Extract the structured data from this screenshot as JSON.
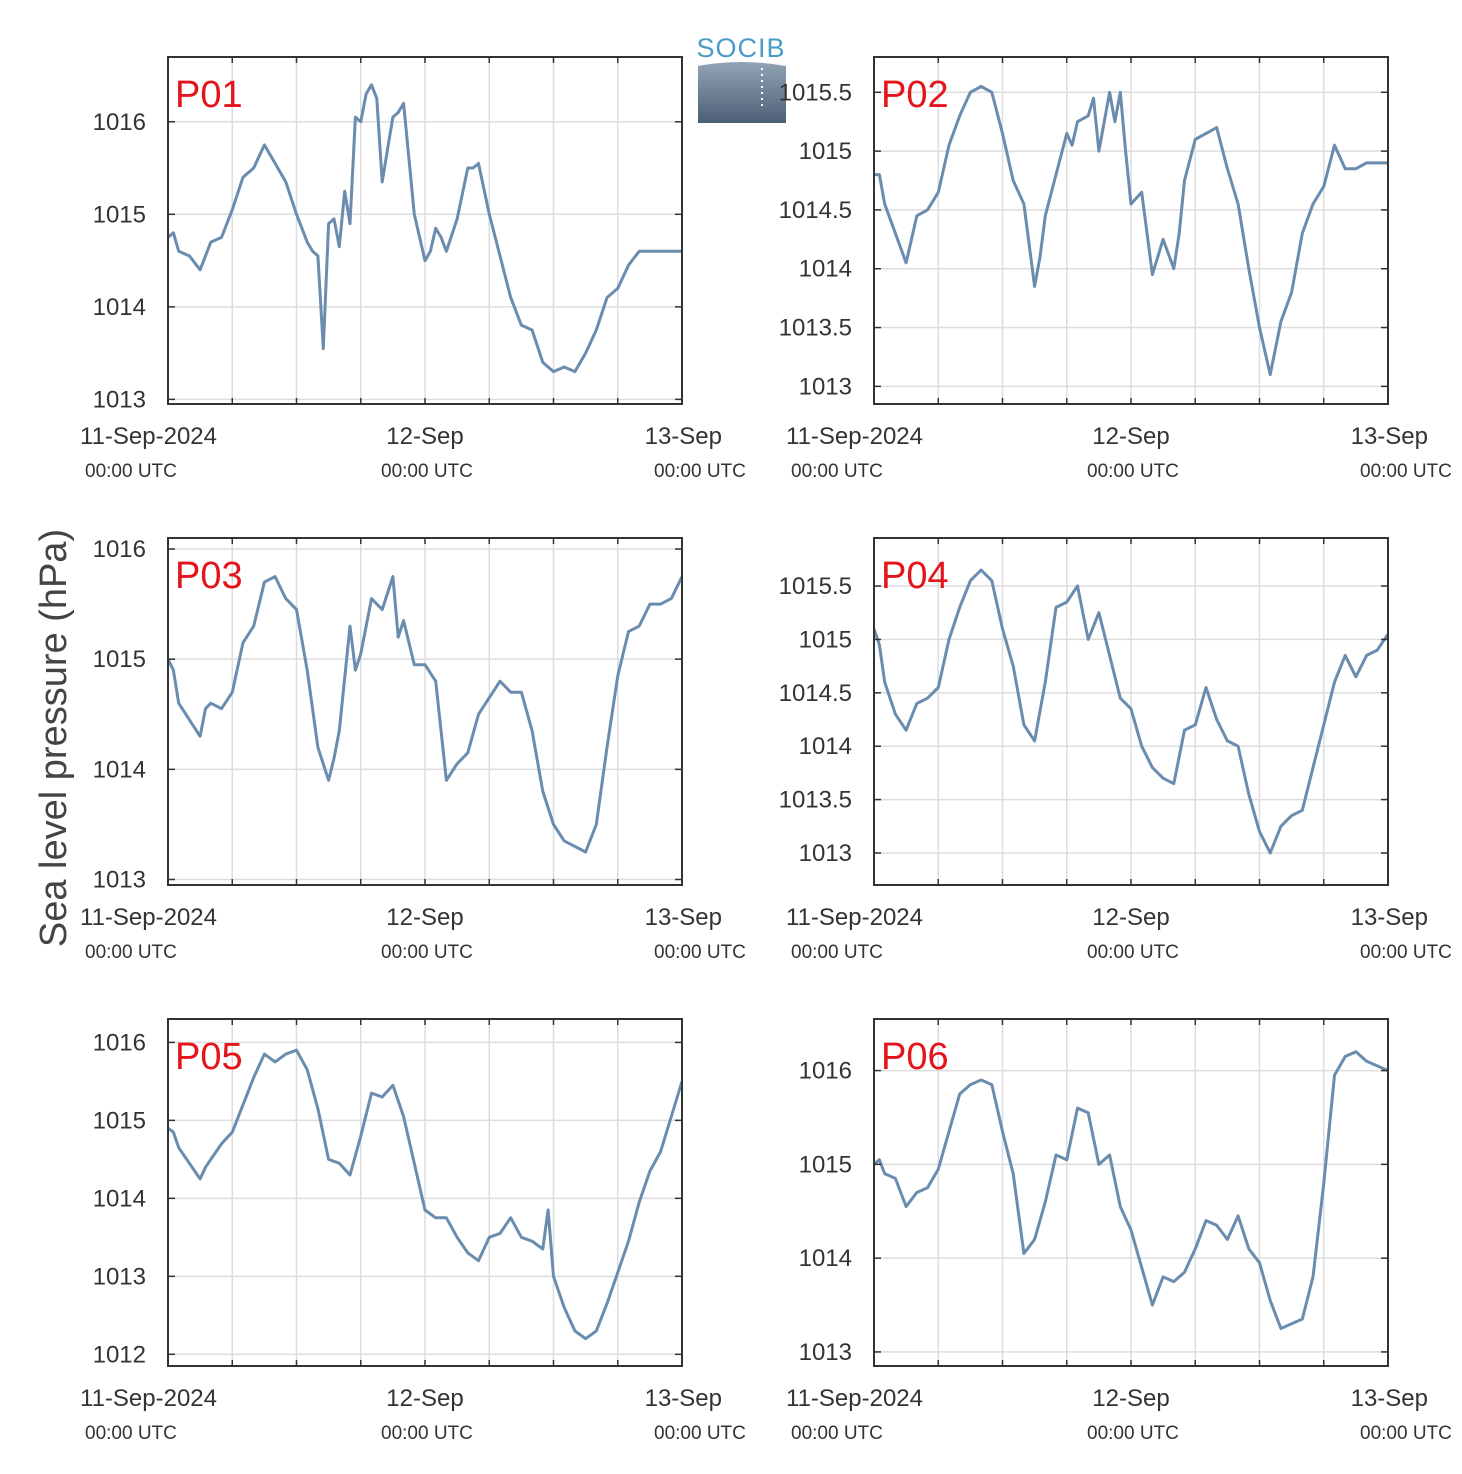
{
  "logo": {
    "text": "SOCIB"
  },
  "ylabel": "Sea level pressure (hPa)",
  "x_ticks": [
    {
      "main": "11-Sep-2024",
      "sub": "00:00 UTC",
      "hour": 0
    },
    {
      "main": "12-Sep",
      "sub": "00:00 UTC",
      "hour": 24
    },
    {
      "main": "13-Sep",
      "sub": "00:00 UTC",
      "hour": 48
    }
  ],
  "colors": {
    "line": "#6a8cae",
    "grid": "#dddddd",
    "axis": "#333333",
    "label": "#e3141b"
  },
  "chart_data": [
    {
      "type": "line",
      "title": "P01",
      "xlim": [
        0,
        48
      ],
      "ylim": [
        1012.95,
        1016.7
      ],
      "yticks": [
        1013,
        1014,
        1015,
        1016
      ],
      "ytick_labels": [
        "1013",
        "1014",
        "1015",
        "1016"
      ],
      "x": [
        0,
        0.5,
        1,
        2,
        3,
        3.5,
        4,
        5,
        6,
        7,
        8,
        9,
        10,
        11,
        12,
        13,
        13.5,
        14,
        14.5,
        15,
        15.5,
        16,
        16.5,
        17,
        17.5,
        18,
        18.5,
        19,
        19.5,
        20,
        20.5,
        21,
        21.5,
        22,
        23,
        24,
        24.5,
        25,
        25.5,
        26,
        27,
        28,
        28.5,
        29,
        30,
        31,
        32,
        33,
        34,
        35,
        36,
        37,
        38,
        39,
        40,
        41,
        42,
        43,
        44,
        45,
        46,
        47,
        48
      ],
      "y": [
        1014.75,
        1014.8,
        1014.6,
        1014.55,
        1014.4,
        1014.55,
        1014.7,
        1014.75,
        1015.05,
        1015.4,
        1015.5,
        1015.75,
        1015.55,
        1015.35,
        1015.0,
        1014.7,
        1014.6,
        1014.55,
        1013.55,
        1014.9,
        1014.95,
        1014.65,
        1015.25,
        1014.9,
        1016.05,
        1016.0,
        1016.3,
        1016.4,
        1016.25,
        1015.35,
        1015.7,
        1016.05,
        1016.1,
        1016.2,
        1015.0,
        1014.5,
        1014.6,
        1014.85,
        1014.75,
        1014.6,
        1014.95,
        1015.5,
        1015.5,
        1015.55,
        1015.0,
        1014.55,
        1014.1,
        1013.8,
        1013.75,
        1013.4,
        1013.3,
        1013.35,
        1013.3,
        1013.5,
        1013.75,
        1014.1,
        1014.2,
        1014.45,
        1014.6,
        1014.6,
        1014.6,
        1014.6,
        1014.6
      ]
    },
    {
      "type": "line",
      "title": "P02",
      "xlim": [
        0,
        48
      ],
      "ylim": [
        1012.85,
        1015.8
      ],
      "yticks": [
        1013,
        1013.5,
        1014,
        1014.5,
        1015,
        1015.5
      ],
      "ytick_labels": [
        "1013",
        "1013.5",
        "1014",
        "1014.5",
        "1015",
        "1015.5"
      ],
      "x": [
        0,
        0.5,
        1,
        2,
        3,
        3.5,
        4,
        5,
        6,
        7,
        8,
        9,
        10,
        11,
        12,
        13,
        14,
        15,
        15.5,
        16,
        17,
        18,
        18.5,
        19,
        20,
        20.5,
        21,
        22,
        22.5,
        23,
        23.5,
        24,
        25,
        26,
        27,
        28,
        28.5,
        29,
        30,
        31,
        32,
        33,
        34,
        35,
        36,
        37,
        38,
        39,
        40,
        41,
        42,
        43,
        44,
        45,
        46,
        47,
        48
      ],
      "y": [
        1014.8,
        1014.8,
        1014.55,
        1014.3,
        1014.05,
        1014.25,
        1014.45,
        1014.5,
        1014.65,
        1015.05,
        1015.3,
        1015.5,
        1015.55,
        1015.5,
        1015.15,
        1014.75,
        1014.55,
        1013.85,
        1014.1,
        1014.45,
        1014.8,
        1015.15,
        1015.05,
        1015.25,
        1015.3,
        1015.45,
        1015.0,
        1015.5,
        1015.25,
        1015.5,
        1015.0,
        1014.55,
        1014.65,
        1013.95,
        1014.25,
        1014.0,
        1014.3,
        1014.75,
        1015.1,
        1015.15,
        1015.2,
        1014.85,
        1014.55,
        1014.0,
        1013.5,
        1013.1,
        1013.55,
        1013.8,
        1014.3,
        1014.55,
        1014.7,
        1015.05,
        1014.85,
        1014.85,
        1014.9,
        1014.9,
        1014.9
      ]
    },
    {
      "type": "line",
      "title": "P03",
      "xlim": [
        0,
        48
      ],
      "ylim": [
        1012.95,
        1016.1
      ],
      "yticks": [
        1013,
        1014,
        1015,
        1016
      ],
      "ytick_labels": [
        "1013",
        "1014",
        "1015",
        "1016"
      ],
      "x": [
        0,
        0.5,
        1,
        2,
        3,
        3.5,
        4,
        5,
        6,
        7,
        8,
        9,
        10,
        11,
        12,
        13,
        14,
        15,
        15.5,
        16,
        17,
        17.5,
        18,
        19,
        20,
        21,
        21.5,
        22,
        23,
        24,
        25,
        26,
        27,
        28,
        29,
        30,
        31,
        32,
        33,
        34,
        35,
        36,
        37,
        38,
        39,
        40,
        41,
        42,
        43,
        44,
        45,
        46,
        47,
        48
      ],
      "y": [
        1015.0,
        1014.9,
        1014.6,
        1014.45,
        1014.3,
        1014.55,
        1014.6,
        1014.55,
        1014.7,
        1015.15,
        1015.3,
        1015.7,
        1015.75,
        1015.55,
        1015.45,
        1014.9,
        1014.2,
        1013.9,
        1014.1,
        1014.35,
        1015.3,
        1014.9,
        1015.05,
        1015.55,
        1015.45,
        1015.75,
        1015.2,
        1015.35,
        1014.95,
        1014.95,
        1014.8,
        1013.9,
        1014.05,
        1014.15,
        1014.5,
        1014.65,
        1014.8,
        1014.7,
        1014.7,
        1014.35,
        1013.8,
        1013.5,
        1013.35,
        1013.3,
        1013.25,
        1013.5,
        1014.2,
        1014.85,
        1015.25,
        1015.3,
        1015.5,
        1015.5,
        1015.55,
        1015.75
      ]
    },
    {
      "type": "line",
      "title": "P04",
      "xlim": [
        0,
        48
      ],
      "ylim": [
        1012.7,
        1015.95
      ],
      "yticks": [
        1013,
        1013.5,
        1014,
        1014.5,
        1015,
        1015.5
      ],
      "ytick_labels": [
        "1013",
        "1013.5",
        "1014",
        "1014.5",
        "1015",
        "1015.5"
      ],
      "x": [
        0,
        0.5,
        1,
        2,
        3,
        4,
        5,
        6,
        7,
        8,
        9,
        10,
        11,
        12,
        13,
        14,
        15,
        16,
        17,
        18,
        19,
        20,
        21,
        22,
        23,
        24,
        25,
        26,
        27,
        28,
        29,
        30,
        31,
        32,
        33,
        34,
        35,
        36,
        37,
        38,
        39,
        40,
        41,
        42,
        43,
        44,
        45,
        46,
        47,
        48
      ],
      "y": [
        1015.1,
        1014.95,
        1014.6,
        1014.3,
        1014.15,
        1014.4,
        1014.45,
        1014.55,
        1015.0,
        1015.3,
        1015.55,
        1015.65,
        1015.55,
        1015.1,
        1014.75,
        1014.2,
        1014.05,
        1014.6,
        1015.3,
        1015.35,
        1015.5,
        1015.0,
        1015.25,
        1014.85,
        1014.45,
        1014.35,
        1014.0,
        1013.8,
        1013.7,
        1013.65,
        1014.15,
        1014.2,
        1014.55,
        1014.25,
        1014.05,
        1014.0,
        1013.55,
        1013.2,
        1013.0,
        1013.25,
        1013.35,
        1013.4,
        1013.8,
        1014.2,
        1014.6,
        1014.85,
        1014.65,
        1014.85,
        1014.9,
        1015.05
      ]
    },
    {
      "type": "line",
      "title": "P05",
      "xlim": [
        0,
        48
      ],
      "ylim": [
        1011.85,
        1016.3
      ],
      "yticks": [
        1012,
        1013,
        1014,
        1015,
        1016
      ],
      "ytick_labels": [
        "1012",
        "1013",
        "1014",
        "1015",
        "1016"
      ],
      "x": [
        0,
        0.5,
        1,
        2,
        3,
        3.5,
        4,
        5,
        6,
        7,
        8,
        9,
        10,
        11,
        12,
        13,
        14,
        15,
        16,
        17,
        18,
        19,
        20,
        21,
        22,
        23,
        24,
        25,
        26,
        27,
        28,
        29,
        30,
        31,
        32,
        33,
        34,
        35,
        35.5,
        36,
        37,
        38,
        39,
        40,
        41,
        42,
        43,
        44,
        45,
        46,
        47,
        48
      ],
      "y": [
        1014.9,
        1014.85,
        1014.65,
        1014.45,
        1014.25,
        1014.4,
        1014.5,
        1014.7,
        1014.85,
        1015.2,
        1015.55,
        1015.85,
        1015.75,
        1015.85,
        1015.9,
        1015.65,
        1015.15,
        1014.5,
        1014.45,
        1014.3,
        1014.8,
        1015.35,
        1015.3,
        1015.45,
        1015.05,
        1014.45,
        1013.85,
        1013.75,
        1013.75,
        1013.5,
        1013.3,
        1013.2,
        1013.5,
        1013.55,
        1013.75,
        1013.5,
        1013.45,
        1013.35,
        1013.85,
        1013.0,
        1012.6,
        1012.3,
        1012.2,
        1012.3,
        1012.65,
        1013.05,
        1013.45,
        1013.95,
        1014.35,
        1014.6,
        1015.05,
        1015.5
      ]
    },
    {
      "type": "line",
      "title": "P06",
      "xlim": [
        0,
        48
      ],
      "ylim": [
        1012.85,
        1016.55
      ],
      "yticks": [
        1013,
        1014,
        1015,
        1016
      ],
      "ytick_labels": [
        "1013",
        "1014",
        "1015",
        "1016"
      ],
      "x": [
        0,
        0.5,
        1,
        2,
        3,
        4,
        5,
        6,
        7,
        8,
        9,
        10,
        11,
        12,
        13,
        14,
        15,
        16,
        17,
        18,
        19,
        20,
        21,
        22,
        23,
        24,
        25,
        26,
        27,
        28,
        29,
        30,
        31,
        32,
        33,
        34,
        35,
        36,
        37,
        38,
        39,
        40,
        41,
        42,
        43,
        44,
        45,
        46,
        47,
        48
      ],
      "y": [
        1015.0,
        1015.05,
        1014.9,
        1014.85,
        1014.55,
        1014.7,
        1014.75,
        1014.95,
        1015.35,
        1015.75,
        1015.85,
        1015.9,
        1015.85,
        1015.35,
        1014.9,
        1014.05,
        1014.2,
        1014.6,
        1015.1,
        1015.05,
        1015.6,
        1015.55,
        1015.0,
        1015.1,
        1014.55,
        1014.3,
        1013.9,
        1013.5,
        1013.8,
        1013.75,
        1013.85,
        1014.1,
        1014.4,
        1014.35,
        1014.2,
        1014.45,
        1014.1,
        1013.95,
        1013.55,
        1013.25,
        1013.3,
        1013.35,
        1013.8,
        1014.8,
        1015.95,
        1016.15,
        1016.2,
        1016.1,
        1016.05,
        1016.0
      ]
    }
  ]
}
